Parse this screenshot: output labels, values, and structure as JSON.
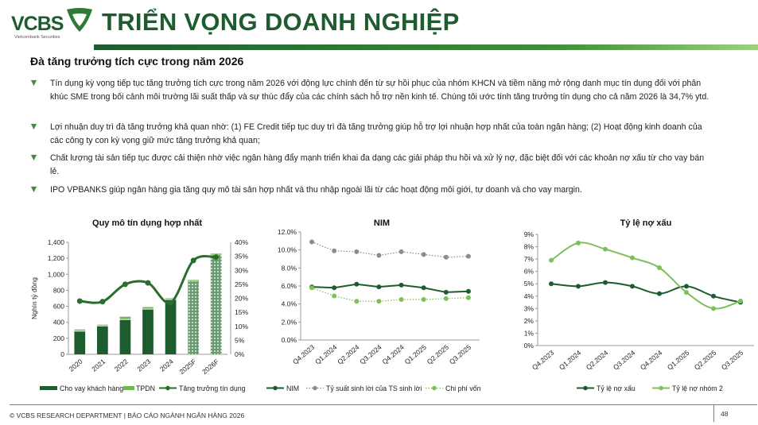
{
  "header": {
    "logo_text": "VCBS",
    "logo_sub": "Vietcombank Securities",
    "title": "TRIỂN VỌNG DOANH NGHIỆP",
    "subtitle": "Đà tăng trưởng tích cực trong năm 2026",
    "brand_color": "#1d5c2e"
  },
  "bullets": [
    "Tín dụng kỳ vọng tiếp tục tăng trưởng tích cực trong năm 2026 với động lực chính đến từ sự hồi phục của nhóm KHCN và tiềm năng mở rộng danh mục tín dụng đối với phân khúc SME trong bối cảnh môi trường lãi suất thấp và sự thúc đẩy của các chính sách hỗ trợ nền kinh tế. Chúng tôi ước tính tăng trưởng tín dụng cho cả năm  2026 là 34,7% ytd.",
    "Lợi nhuận duy trì đà tăng trưởng khả quan nhờ: (1) FE Credit tiếp tục duy trì đà tăng trưởng giúp hỗ trợ lợi nhuận hợp nhất của toàn ngân hàng; (2) Hoạt động kinh doanh của các công ty con kỳ vọng giữ mức tăng trưởng khả quan;",
    "Chất lượng tài sản tiếp tục được cải thiện nhờ việc ngân hàng đẩy mạnh triển khai đa dạng các giải pháp thu hồi và xử lý nợ, đặc biệt đối với các khoản nợ xấu từ cho vay bán lẻ.",
    "IPO VPBANKS giúp ngân hàng gia tăng quy mô tài sản hợp nhất và thu nhập ngoài lãi từ các hoạt động môi giới, tự doanh và cho vay margin."
  ],
  "footer": {
    "text": "© VCBS RESEARCH DEPARTMENT | BÁO CÁO NGÀNH NGÂN HÀNG 2026",
    "page": "48"
  },
  "chart_data": [
    {
      "type": "bar",
      "title": "Quy mô tín dụng hợp nhất",
      "ylabel": "Nghìn tỷ đồng",
      "ylim": [
        0,
        1400
      ],
      "yticks": [
        "0",
        "200",
        "400",
        "600",
        "800",
        "1,000",
        "1,200",
        "1,400"
      ],
      "y2lim": [
        0,
        40
      ],
      "y2ticks": [
        "0%",
        "5%",
        "10%",
        "15%",
        "20%",
        "25%",
        "30%",
        "35%",
        "40%"
      ],
      "categories": [
        "2020",
        "2021",
        "2022",
        "2023",
        "2024",
        "2025F",
        "2026F"
      ],
      "forecast": [
        "2025F",
        "2026F"
      ],
      "series": [
        {
          "name": "Cho vay khách hàng",
          "kind": "bar-stacked",
          "color": "#1d5c2e",
          "values": [
            285,
            350,
            430,
            560,
            680,
            900,
            1220
          ]
        },
        {
          "name": "TPDN",
          "kind": "bar-stacked",
          "color": "#6dbb4f",
          "values": [
            25,
            20,
            40,
            30,
            20,
            30,
            40
          ]
        },
        {
          "name": "Tăng trưởng tín dụng",
          "kind": "line",
          "axis": "right",
          "color": "#2a6e2e",
          "values": [
            19.0,
            18.8,
            25.0,
            25.5,
            18.5,
            33.5,
            34.7
          ]
        }
      ],
      "legend": "bottom",
      "grid": false
    },
    {
      "type": "line",
      "title": "NIM",
      "ylim": [
        0,
        12
      ],
      "yticks": [
        "0.0%",
        "2.0%",
        "4.0%",
        "6.0%",
        "8.0%",
        "10.0%",
        "12.0%"
      ],
      "categories": [
        "Q4.2023",
        "Q1.2024",
        "Q2.2024",
        "Q3.2024",
        "Q4.2024",
        "Q1.2025",
        "Q2.2025",
        "Q3.2025"
      ],
      "series": [
        {
          "name": "NIM",
          "color": "#1d5c2e",
          "style": "solid",
          "values": [
            5.9,
            5.8,
            6.2,
            5.9,
            6.1,
            5.8,
            5.3,
            5.4
          ]
        },
        {
          "name": "Tỷ suất sinh lời của TS sinh lời",
          "color": "#8c8c8c",
          "style": "dotted",
          "values": [
            10.9,
            9.9,
            9.8,
            9.4,
            9.8,
            9.5,
            9.2,
            9.3
          ]
        },
        {
          "name": "Chi phí vốn",
          "color": "#7cc05a",
          "style": "dotted",
          "values": [
            5.8,
            4.9,
            4.3,
            4.3,
            4.5,
            4.5,
            4.6,
            4.7
          ]
        }
      ],
      "legend": "bottom",
      "grid": false
    },
    {
      "type": "line",
      "title": "Tỷ lệ nợ xấu",
      "ylim": [
        0,
        9
      ],
      "yticks": [
        "0%",
        "1%",
        "2%",
        "3%",
        "4%",
        "5%",
        "6%",
        "7%",
        "8%",
        "9%"
      ],
      "categories": [
        "Q4.2023",
        "Q1.2024",
        "Q2.2024",
        "Q3.2024",
        "Q4.2024",
        "Q1.2025",
        "Q2.2025",
        "Q3.2025"
      ],
      "series": [
        {
          "name": "Tỷ lệ nợ xấu",
          "color": "#1d5c2e",
          "style": "smooth",
          "values": [
            5.0,
            4.8,
            5.1,
            4.8,
            4.2,
            4.8,
            4.0,
            3.5
          ]
        },
        {
          "name": "Tỷ lệ nợ nhóm 2",
          "color": "#7cc05a",
          "style": "smooth",
          "values": [
            6.9,
            8.3,
            7.8,
            7.1,
            6.3,
            4.3,
            3.0,
            3.6
          ]
        }
      ],
      "legend": "bottom",
      "grid": false
    }
  ]
}
